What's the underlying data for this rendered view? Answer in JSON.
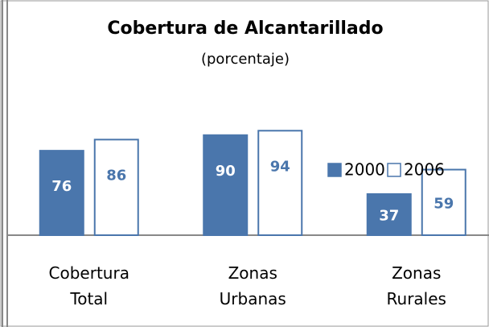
{
  "chart_data": {
    "type": "bar",
    "title": "Cobertura de Alcantarillado",
    "subtitle": "(porcentaje)",
    "categories": [
      "Cobertura Total",
      "Zonas Urbanas",
      "Zonas Rurales"
    ],
    "series": [
      {
        "name": "2000",
        "color": "#4a76ac",
        "values": [
          76,
          90,
          37
        ]
      },
      {
        "name": "2006",
        "color": "#ffffff",
        "values": [
          86,
          94,
          59
        ]
      }
    ],
    "ylim": [
      0,
      100
    ]
  }
}
